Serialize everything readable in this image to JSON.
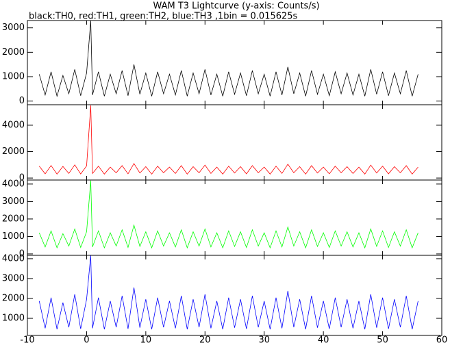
{
  "chart_data": [
    {
      "type": "line",
      "title": "WAM T3 Lightcurve (y-axis: Counts/s)",
      "subtitle": "black:TH0, red:TH1, green:TH2, blue:TH3 ,1bin = 0.015625s",
      "x": [
        -8,
        -7,
        -6,
        -5,
        -4,
        -3,
        -2,
        -1,
        0,
        0.7,
        1,
        2,
        3,
        4,
        5,
        6,
        7,
        8,
        9,
        10,
        11,
        12,
        13,
        14,
        15,
        16,
        17,
        18,
        19,
        20,
        21,
        22,
        23,
        24,
        25,
        26,
        27,
        28,
        29,
        30,
        31,
        32,
        33,
        34,
        35,
        36,
        37,
        38,
        39,
        40,
        41,
        42,
        43,
        44,
        45,
        46,
        47,
        48,
        49,
        50,
        51,
        52,
        53,
        54,
        55,
        56
      ],
      "series": [
        {
          "color": "#000000",
          "values": [
            1100,
            250,
            1200,
            200,
            1050,
            300,
            1300,
            220,
            1150,
            3300,
            250,
            1200,
            200,
            1100,
            300,
            1250,
            220,
            1500,
            280,
            1150,
            200,
            1200,
            300,
            1100,
            250,
            1250,
            200,
            1150,
            300,
            1300,
            250,
            1100,
            200,
            1200,
            280,
            1150,
            220,
            1250,
            300,
            1100,
            200,
            1200,
            250,
            1400,
            300,
            1150,
            200,
            1250,
            280,
            1100,
            220,
            1200,
            300,
            1150,
            250,
            1100,
            200,
            1300,
            280,
            1200,
            220,
            1150,
            300,
            1250,
            200,
            1100
          ]
        }
      ],
      "xlim": [
        -10,
        60
      ],
      "ylim": [
        -150,
        3300
      ],
      "yticks": [
        0,
        1000,
        2000,
        3000
      ]
    },
    {
      "type": "line",
      "x": [
        -8,
        -7,
        -6,
        -5,
        -4,
        -3,
        -2,
        -1,
        0,
        0.7,
        1,
        2,
        3,
        4,
        5,
        6,
        7,
        8,
        9,
        10,
        11,
        12,
        13,
        14,
        15,
        16,
        17,
        18,
        19,
        20,
        21,
        22,
        23,
        24,
        25,
        26,
        27,
        28,
        29,
        30,
        31,
        32,
        33,
        34,
        35,
        36,
        37,
        38,
        39,
        40,
        41,
        42,
        43,
        44,
        45,
        46,
        47,
        48,
        49,
        50,
        51,
        52,
        53,
        54,
        55,
        56
      ],
      "series": [
        {
          "color": "#ff0000",
          "values": [
            900,
            320,
            950,
            300,
            880,
            350,
            1000,
            310,
            920,
            5500,
            350,
            900,
            300,
            830,
            400,
            940,
            320,
            1100,
            380,
            860,
            300,
            900,
            400,
            830,
            350,
            940,
            300,
            860,
            400,
            980,
            350,
            830,
            300,
            900,
            380,
            860,
            320,
            940,
            400,
            830,
            300,
            900,
            350,
            1050,
            400,
            860,
            300,
            940,
            380,
            830,
            320,
            900,
            400,
            860,
            350,
            830,
            300,
            980,
            380,
            900,
            320,
            860,
            400,
            940,
            300,
            830
          ]
        }
      ],
      "xlim": [
        -10,
        60
      ],
      "ylim": [
        -150,
        5550
      ],
      "yticks": [
        0,
        2000,
        4000
      ]
    },
    {
      "type": "line",
      "x": [
        -8,
        -7,
        -6,
        -5,
        -4,
        -3,
        -2,
        -1,
        0,
        0.7,
        1,
        2,
        3,
        4,
        5,
        6,
        7,
        8,
        9,
        10,
        11,
        12,
        13,
        14,
        15,
        16,
        17,
        18,
        19,
        20,
        21,
        22,
        23,
        24,
        25,
        26,
        27,
        28,
        29,
        30,
        31,
        32,
        33,
        34,
        35,
        36,
        37,
        38,
        39,
        40,
        41,
        42,
        43,
        44,
        45,
        46,
        47,
        48,
        49,
        50,
        51,
        52,
        53,
        54,
        55,
        56
      ],
      "series": [
        {
          "color": "#00ff00",
          "values": [
            1210,
            400,
            1320,
            350,
            1160,
            450,
            1430,
            370,
            1270,
            4200,
            400,
            1320,
            350,
            1210,
            450,
            1380,
            370,
            1650,
            430,
            1270,
            350,
            1320,
            450,
            1210,
            400,
            1380,
            350,
            1270,
            450,
            1430,
            400,
            1210,
            350,
            1320,
            430,
            1270,
            370,
            1380,
            450,
            1210,
            350,
            1320,
            400,
            1540,
            450,
            1270,
            350,
            1380,
            430,
            1210,
            370,
            1320,
            450,
            1270,
            400,
            1210,
            350,
            1430,
            430,
            1320,
            370,
            1270,
            450,
            1380,
            350,
            1210
          ]
        }
      ],
      "xlim": [
        -10,
        60
      ],
      "ylim": [
        -80,
        4230
      ],
      "yticks": [
        0,
        1000,
        2000,
        3000,
        4000
      ]
    },
    {
      "type": "line",
      "x": [
        -8,
        -7,
        -6,
        -5,
        -4,
        -3,
        -2,
        -1,
        0,
        0.7,
        1,
        2,
        3,
        4,
        5,
        6,
        7,
        8,
        9,
        10,
        11,
        12,
        13,
        14,
        15,
        16,
        17,
        18,
        19,
        20,
        21,
        22,
        23,
        24,
        25,
        26,
        27,
        28,
        29,
        30,
        31,
        32,
        33,
        34,
        35,
        36,
        37,
        38,
        39,
        40,
        41,
        42,
        43,
        44,
        45,
        46,
        47,
        48,
        49,
        50,
        51,
        52,
        53,
        54,
        55,
        56
      ],
      "series": [
        {
          "color": "#0000ff",
          "values": [
            1870,
            500,
            2040,
            450,
            1790,
            550,
            2210,
            470,
            1960,
            4170,
            500,
            2040,
            450,
            1870,
            550,
            2130,
            470,
            2550,
            530,
            1960,
            450,
            2040,
            550,
            1870,
            500,
            2130,
            450,
            1960,
            550,
            2210,
            500,
            1870,
            450,
            2040,
            530,
            1960,
            470,
            2130,
            550,
            1870,
            450,
            2040,
            500,
            2380,
            550,
            1960,
            450,
            2130,
            530,
            1870,
            470,
            2040,
            550,
            1960,
            500,
            1870,
            450,
            2210,
            530,
            2040,
            470,
            1960,
            550,
            2130,
            450,
            1870
          ]
        }
      ],
      "xlim": [
        -10,
        60
      ],
      "ylim": [
        140,
        4170
      ],
      "yticks": [
        1000,
        2000,
        3000,
        4000
      ],
      "xticks": [
        -10,
        0,
        10,
        20,
        30,
        40,
        50,
        60
      ]
    }
  ]
}
